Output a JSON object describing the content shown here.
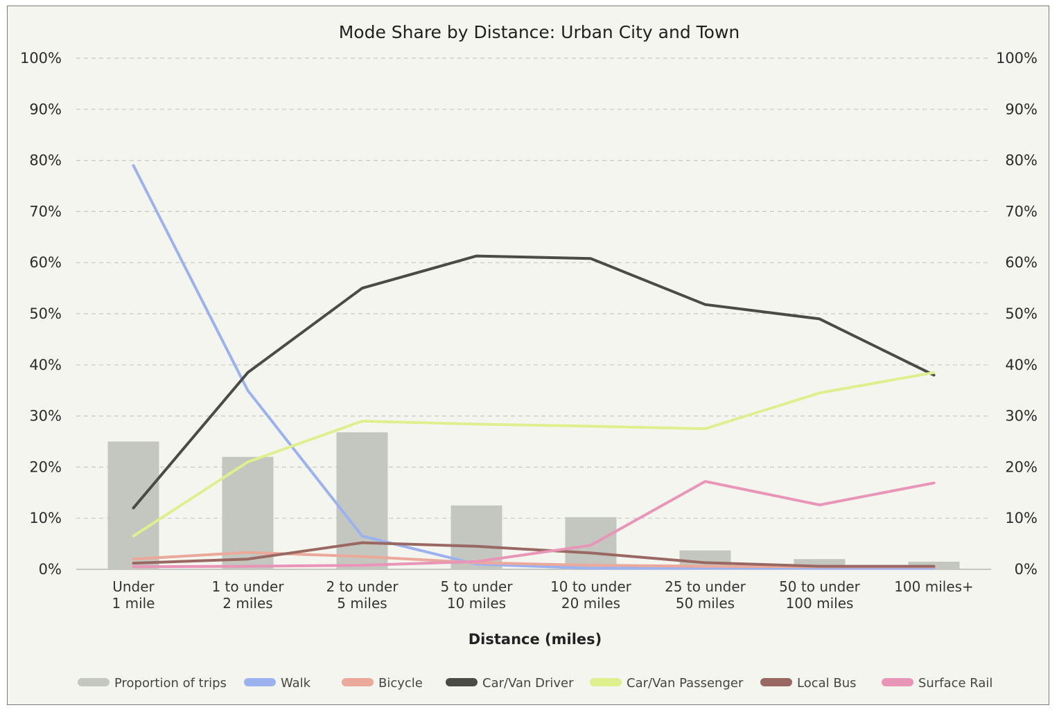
{
  "chart_data": {
    "type": "bar+line",
    "title": "Mode Share by Distance: Urban City and Town",
    "xlabel": "Distance (miles)",
    "ylabel": "",
    "ylim": [
      0,
      100
    ],
    "y_ticks": [
      "0%",
      "10%",
      "20%",
      "30%",
      "40%",
      "50%",
      "60%",
      "70%",
      "80%",
      "90%",
      "100%"
    ],
    "y_ticks_right": [
      "0%",
      "10%",
      "20%",
      "30%",
      "40%",
      "50%",
      "60%",
      "70%",
      "80%",
      "90%",
      "100%"
    ],
    "categories": [
      [
        "Under",
        "1 mile"
      ],
      [
        "1 to under",
        "2 miles"
      ],
      [
        "2 to under",
        "5 miles"
      ],
      [
        "5 to under",
        "10 miles"
      ],
      [
        "10 to under",
        "20 miles"
      ],
      [
        "25 to under",
        "50 miles"
      ],
      [
        "50 to under",
        "100 miles"
      ],
      [
        "100 miles+"
      ]
    ],
    "bars": {
      "name": "Proportion of trips",
      "color": "#c3c7bf",
      "values": [
        25,
        22,
        26.8,
        12.5,
        10.2,
        3.7,
        2,
        1.5
      ]
    },
    "series": [
      {
        "name": "Walk",
        "color": "#9bb2ee",
        "values": [
          79,
          35,
          6.5,
          1,
          0.2,
          0.2,
          0.2,
          0.2
        ]
      },
      {
        "name": "Bicycle",
        "color": "#eba99b",
        "values": [
          2,
          3.3,
          2.5,
          1.3,
          0.8,
          0.6,
          0.5,
          0.5
        ]
      },
      {
        "name": "Car/Van Driver",
        "color": "#4a4b47",
        "values": [
          12,
          38.5,
          55,
          61.3,
          60.8,
          51.8,
          49,
          38
        ]
      },
      {
        "name": "Car/Van Passenger",
        "color": "#def08e",
        "values": [
          6.5,
          21,
          29,
          28.4,
          28,
          27.5,
          34.5,
          38.5
        ]
      },
      {
        "name": "Local Bus",
        "color": "#9a6862",
        "values": [
          1.2,
          2,
          5.2,
          4.5,
          3.2,
          1.3,
          0.6,
          0.6
        ]
      },
      {
        "name": "Surface Rail",
        "color": "#e995b8",
        "values": [
          0.5,
          0.6,
          0.8,
          1.5,
          4.7,
          17.2,
          12.6,
          16.9
        ]
      }
    ],
    "grid": true,
    "legend": "bottom"
  }
}
